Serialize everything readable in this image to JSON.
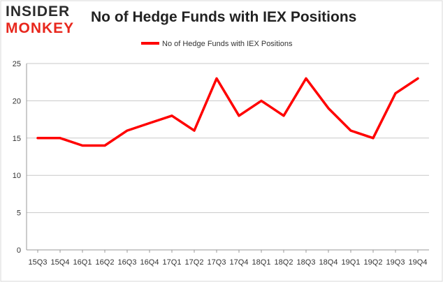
{
  "brand": {
    "logo_top": "INSIDER",
    "logo_bottom": "MONKEY"
  },
  "chart_data": {
    "type": "line",
    "title": "No of Hedge Funds with IEX Positions",
    "xlabel": "",
    "ylabel": "",
    "categories": [
      "15Q3",
      "15Q4",
      "16Q1",
      "16Q2",
      "16Q3",
      "16Q4",
      "17Q1",
      "17Q2",
      "17Q3",
      "17Q4",
      "18Q1",
      "18Q2",
      "18Q3",
      "18Q4",
      "19Q1",
      "19Q2",
      "19Q3",
      "19Q4"
    ],
    "series": [
      {
        "name": "No of Hedge Funds with IEX Positions",
        "values": [
          15,
          15,
          14,
          14,
          16,
          17,
          18,
          16,
          23,
          18,
          20,
          18,
          23,
          19,
          16,
          15,
          21,
          23
        ],
        "color": "#ff0000"
      }
    ],
    "ylim": [
      0,
      25
    ],
    "yticks": [
      0,
      5,
      10,
      15,
      20,
      25
    ],
    "grid": true,
    "legend": "top-center",
    "colors": {
      "line": "#ff0000",
      "grid": "#c8c8c8",
      "axis": "#999999",
      "border": "#d9d9d9"
    }
  }
}
